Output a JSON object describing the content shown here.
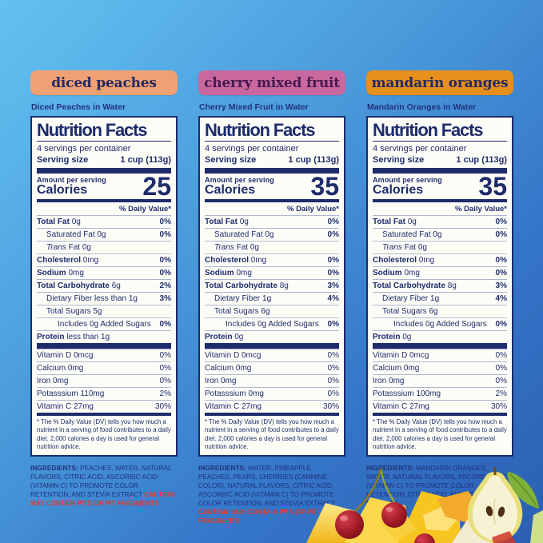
{
  "colors": {
    "background_top": "#63c2f1",
    "background_bottom": "#2b5fb2",
    "label_navy": "#1e2c6b",
    "caution_red": "#e03a2b"
  },
  "panels": [
    {
      "badge": {
        "label": "diced peaches",
        "bg": "#f0a173",
        "fg": "#232a63"
      },
      "subtitle": "Diced Peaches in Water",
      "label": {
        "title": "Nutrition Facts",
        "servings": "4 servings per container",
        "serving_size_label": "Serving size",
        "serving_size_value": "1 cup (113g)",
        "amount_per_serving": "Amount per serving",
        "calories_label": "Calories",
        "calories": "25",
        "dv_header": "% Daily Value*",
        "rows": [
          {
            "bold": "Total Fat",
            "rest": " 0g",
            "pct": "0%",
            "pct_bold": true,
            "indent": 0
          },
          {
            "rest": "Saturated Fat 0g",
            "pct": "0%",
            "pct_bold": true,
            "indent": 1
          },
          {
            "italic": "Trans",
            "rest": " Fat 0g",
            "pct": "",
            "indent": 1
          },
          {
            "bold": "Cholesterol",
            "rest": " 0mg",
            "pct": "0%",
            "pct_bold": true,
            "indent": 0
          },
          {
            "bold": "Sodium",
            "rest": " 0mg",
            "pct": "0%",
            "pct_bold": true,
            "indent": 0
          },
          {
            "bold": "Total Carbohydrate",
            "rest": " 6g",
            "pct": "2%",
            "pct_bold": true,
            "indent": 0
          },
          {
            "rest": "Dietary Fiber less than 1g",
            "pct": "3%",
            "pct_bold": true,
            "indent": 1
          },
          {
            "rest": "Total Sugars 5g",
            "pct": "",
            "indent": 1
          },
          {
            "rest": "Includes 0g Added Sugars",
            "pct": "0%",
            "pct_bold": true,
            "indent": 2
          },
          {
            "bold": "Protein",
            "rest": " less than 1g",
            "pct": "",
            "indent": 0
          }
        ],
        "vitamins": [
          {
            "name": "Vitamin D 0mcg",
            "pct": "0%"
          },
          {
            "name": "Calcium 0mg",
            "pct": "0%"
          },
          {
            "name": "Iron 0mg",
            "pct": "0%"
          },
          {
            "name": "Potasssium 110mg",
            "pct": "2%"
          },
          {
            "name": "Vitamin C 27mg",
            "pct": "30%"
          }
        ],
        "footnote": "* The % Daily Value (DV) tells you how much a nutrient in a serving of food contributes to a daily diet. 2,000 calories a day is used for general nutrition advice."
      },
      "ingredients": {
        "label": "INGREDIENTS:",
        "text": " PEACHES, WATER, NATURAL FLAVORS, CITRIC ACID, ASCORBIC ACID (VITAMIN C) TO PROMOTE COLOR RETENTION, AND STEVIA EXTRACT ",
        "caution": "CAUTION: MAY CONTAIN PITS OR PIT FRAGMENTS"
      }
    },
    {
      "badge": {
        "label": "cherry mixed fruit",
        "bg": "#c9679f",
        "fg": "#461a4e"
      },
      "subtitle": "Cherry Mixed Fruit in Water",
      "label": {
        "title": "Nutrition Facts",
        "servings": "4 servings per container",
        "serving_size_label": "Serving size",
        "serving_size_value": "1 cup (113g)",
        "amount_per_serving": "Amount per serving",
        "calories_label": "Calories",
        "calories": "35",
        "dv_header": "% Daily Value*",
        "rows": [
          {
            "bold": "Total Fat",
            "rest": " 0g",
            "pct": "0%",
            "pct_bold": true,
            "indent": 0
          },
          {
            "rest": "Saturated Fat 0g",
            "pct": "0%",
            "pct_bold": true,
            "indent": 1
          },
          {
            "italic": "Trans",
            "rest": " Fat 0g",
            "pct": "",
            "indent": 1
          },
          {
            "bold": "Cholesterol",
            "rest": " 0mg",
            "pct": "0%",
            "pct_bold": true,
            "indent": 0
          },
          {
            "bold": "Sodium",
            "rest": " 0mg",
            "pct": "0%",
            "pct_bold": true,
            "indent": 0
          },
          {
            "bold": "Total Carbohydrate",
            "rest": " 8g",
            "pct": "3%",
            "pct_bold": true,
            "indent": 0
          },
          {
            "rest": "Dietary Fiber 1g",
            "pct": "4%",
            "pct_bold": true,
            "indent": 1
          },
          {
            "rest": "Total Sugars 6g",
            "pct": "",
            "indent": 1
          },
          {
            "rest": "Includes 0g Added Sugars",
            "pct": "0%",
            "pct_bold": true,
            "indent": 2
          },
          {
            "bold": "Protein",
            "rest": " 0g",
            "pct": "",
            "indent": 0
          }
        ],
        "vitamins": [
          {
            "name": "Vitamin D 0mcg",
            "pct": "0%"
          },
          {
            "name": "Calcium 0mg",
            "pct": "0%"
          },
          {
            "name": "Iron 0mg",
            "pct": "0%"
          },
          {
            "name": "Potasssium 0mg",
            "pct": "0%"
          },
          {
            "name": "Vitamin C 27mg",
            "pct": "30%"
          }
        ],
        "footnote": "* The % Daily Value (DV) tells you how much a nutrient in a serving of food contributes to a daily diet. 2,000 calories a day is used for general nutrition advice."
      },
      "ingredients": {
        "label": "INGREDIENTS:",
        "text": " WATER, PINEAPPLE, PEACHES, PEARS, CHERRIES (CARMINE COLOR), NATURAL FLAVORS, CITRIC ACID, ASCORBIC ACID (VITAMIN C) TO PROMOTE COLOR RETENTION, AND STEVIA EXTRACT ",
        "caution": "CAUTION: MAY CONTAIN PITS OR PIT FRAGMENTS"
      }
    },
    {
      "badge": {
        "label": "mandarin oranges",
        "bg": "#e78f1c",
        "fg": "#232a63"
      },
      "subtitle": "Mandarin Oranges in Water",
      "label": {
        "title": "Nutrition Facts",
        "servings": "4 servings per container",
        "serving_size_label": "Serving size",
        "serving_size_value": "1 cup (113g)",
        "amount_per_serving": "Amount per serving",
        "calories_label": "Calories",
        "calories": "35",
        "dv_header": "% Daily Value*",
        "rows": [
          {
            "bold": "Total Fat",
            "rest": " 0g",
            "pct": "0%",
            "pct_bold": true,
            "indent": 0
          },
          {
            "rest": "Saturated Fat 0g",
            "pct": "0%",
            "pct_bold": true,
            "indent": 1
          },
          {
            "italic": "Trans",
            "rest": " Fat 0g",
            "pct": "",
            "indent": 1
          },
          {
            "bold": "Cholesterol",
            "rest": " 0mg",
            "pct": "0%",
            "pct_bold": true,
            "indent": 0
          },
          {
            "bold": "Sodium",
            "rest": " 0mg",
            "pct": "0%",
            "pct_bold": true,
            "indent": 0
          },
          {
            "bold": "Total Carbohydrate",
            "rest": " 8g",
            "pct": "3%",
            "pct_bold": true,
            "indent": 0
          },
          {
            "rest": "Dietary Fiber 1g",
            "pct": "4%",
            "pct_bold": true,
            "indent": 1
          },
          {
            "rest": "Total Sugars 6g",
            "pct": "",
            "indent": 1
          },
          {
            "rest": "Includes 0g Added Sugars",
            "pct": "0%",
            "pct_bold": true,
            "indent": 2
          },
          {
            "bold": "Protein",
            "rest": " 0g",
            "pct": "",
            "indent": 0
          }
        ],
        "vitamins": [
          {
            "name": "Vitamin D 0mcg",
            "pct": "0%"
          },
          {
            "name": "Calcium 0mg",
            "pct": "0%"
          },
          {
            "name": "Iron 0mg",
            "pct": "0%"
          },
          {
            "name": "Potasssium 100mg",
            "pct": "2%"
          },
          {
            "name": "Vitamin C 27mg",
            "pct": "30%"
          }
        ],
        "footnote": "* The % Daily Value (DV) tells you how much a nutrient in a serving of food contributes to a daily diet. 2,000 calories a day is used for general nutrition advice."
      },
      "ingredients": {
        "label": "INGREDIENTS:",
        "text": " MANDARIN ORANGES, WATER, NATURAL FLAVORS, ASCORBIC ACID (VITAMIN C) TO PROMOTE COLOR RETENTION, CITRIC ACID, AND STEVIA EXTRACT",
        "caution": ""
      }
    }
  ]
}
